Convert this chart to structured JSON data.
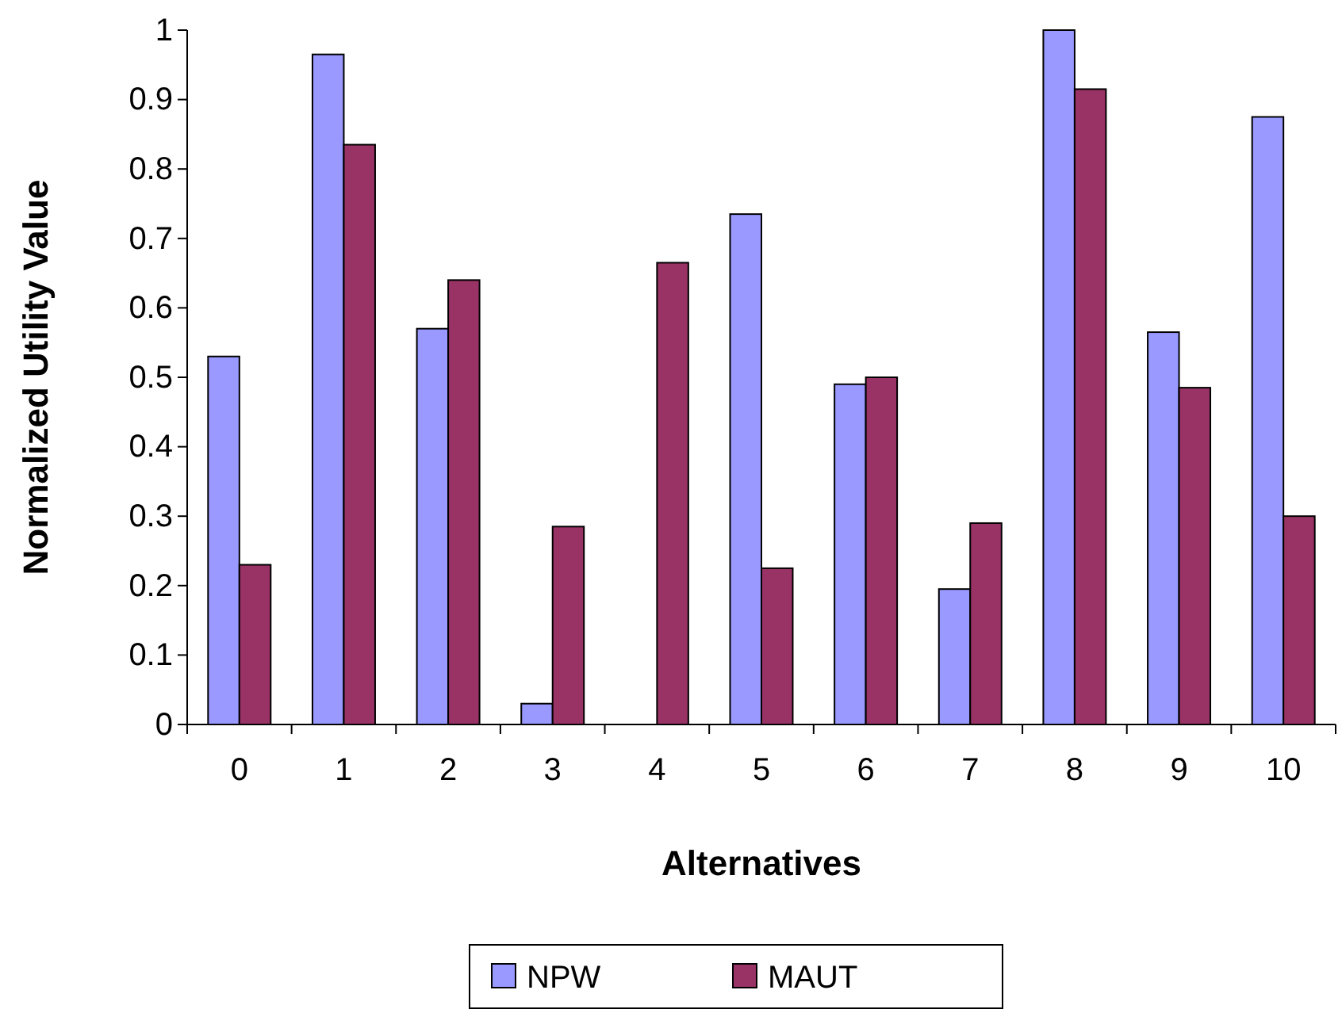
{
  "chart_data": {
    "type": "bar",
    "xlabel": "Alternatives",
    "ylabel": "Normalized Utility Value",
    "categories": [
      "0",
      "1",
      "2",
      "3",
      "4",
      "5",
      "6",
      "7",
      "8",
      "9",
      "10"
    ],
    "series": [
      {
        "name": "NPW",
        "color": "#9999ff",
        "values": [
          0.53,
          0.965,
          0.57,
          0.03,
          0,
          0.735,
          0.49,
          0.195,
          1.0,
          0.565,
          0.875
        ]
      },
      {
        "name": "MAUT",
        "color": "#993366",
        "values": [
          0.23,
          0.835,
          0.64,
          0.285,
          0.665,
          0.225,
          0.5,
          0.29,
          0.915,
          0.485,
          0.3
        ]
      }
    ],
    "ylim": [
      0,
      1
    ],
    "yticks": [
      0,
      0.1,
      0.2,
      0.3,
      0.4,
      0.5,
      0.6,
      0.7,
      0.8,
      0.9,
      1
    ],
    "grid": false,
    "legend": "bottom"
  }
}
